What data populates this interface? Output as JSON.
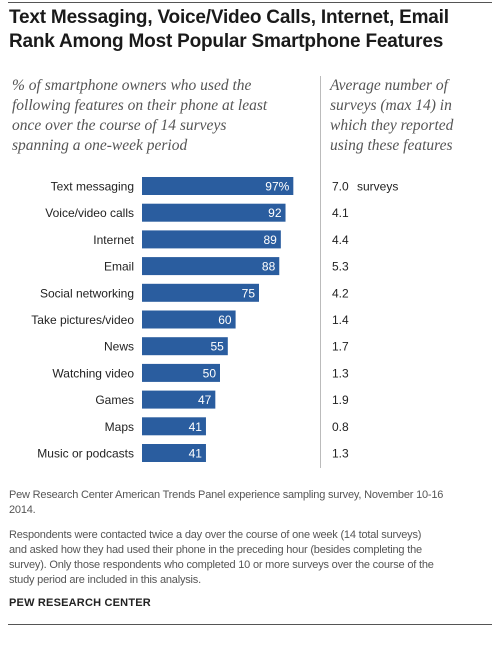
{
  "title_lines": [
    "Text Messaging, Voice/Video Calls, Internet, Email",
    "Rank Among Most Popular Smartphone Features"
  ],
  "subtitle_left_lines": [
    "% of smartphone owners who used the",
    "following features on their phone at least",
    "once over the course of 14 surveys",
    "spanning a one-week period"
  ],
  "subtitle_right_lines": [
    "Average number of",
    "surveys (max 14) in",
    "which they reported",
    "using these features"
  ],
  "source_lines": [
    "Pew Research Center American Trends Panel experience sampling survey, November 10-16",
    "2014."
  ],
  "note_lines": [
    "Respondents were contacted twice a day over the course of one week (14 total surveys)",
    "and asked how they had used their phone in the preceding hour (besides completing the",
    "survey). Only those respondents who completed 10 or more surveys over the course of the",
    "study period are included in this analysis."
  ],
  "brand": "PEW RESEARCH CENTER",
  "colors": {
    "bar": "#2a5d9f",
    "bar_label": "#ffffff",
    "rule": "#555555"
  },
  "chart_data": {
    "type": "bar",
    "orientation": "horizontal",
    "categories": [
      "Text messaging",
      "Voice/video calls",
      "Internet",
      "Email",
      "Social networking",
      "Take pictures/video",
      "News",
      "Watching video",
      "Games",
      "Maps",
      "Music or podcasts"
    ],
    "values": [
      97,
      92,
      89,
      88,
      75,
      60,
      55,
      50,
      47,
      41,
      41
    ],
    "value_labels": [
      "97%",
      "92",
      "89",
      "88",
      "75",
      "60",
      "55",
      "50",
      "47",
      "41",
      "41"
    ],
    "xlim": [
      0,
      100
    ],
    "second_column": {
      "values": [
        7.0,
        4.1,
        4.4,
        5.3,
        4.2,
        1.4,
        1.7,
        1.3,
        1.9,
        0.8,
        1.3
      ],
      "labels": [
        "7.0",
        "4.1",
        "4.4",
        "5.3",
        "4.2",
        "1.4",
        "1.7",
        "1.3",
        "1.9",
        "0.8",
        "1.3"
      ],
      "first_suffix": "surveys"
    },
    "grid": false,
    "legend": "none"
  }
}
